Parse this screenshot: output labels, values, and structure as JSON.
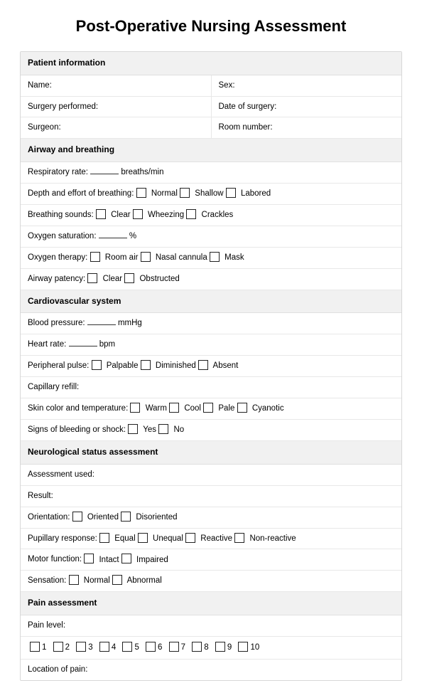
{
  "title": "Post-Operative Nursing Assessment",
  "colors": {
    "page_bg": "#ffffff",
    "border": "#d8d8d8",
    "row_border": "#e8e8e8",
    "header_bg": "#f1f1f1",
    "text": "#000000",
    "checkbox_border": "#222222"
  },
  "patient_info": {
    "header": "Patient information",
    "name_label": "Name:",
    "sex_label": "Sex:",
    "surgery_label": "Surgery performed:",
    "date_label": "Date of surgery:",
    "surgeon_label": "Surgeon:",
    "room_label": "Room number:"
  },
  "airway": {
    "header": "Airway and breathing",
    "resp_rate_pre": "Respiratory rate: ",
    "resp_rate_post": " breaths/min",
    "depth_label": "Depth and effort of breathing:",
    "depth_opts": [
      "Normal",
      "Shallow",
      "Labored"
    ],
    "sounds_label": "Breathing sounds:",
    "sounds_opts": [
      "Clear",
      "Wheezing",
      "Crackles"
    ],
    "sat_pre": "Oxygen saturation: ",
    "sat_post": " %",
    "therapy_label": "Oxygen therapy:",
    "therapy_opts": [
      "Room air",
      "Nasal cannula",
      "Mask"
    ],
    "patency_label": "Airway patency:",
    "patency_opts": [
      "Clear",
      "Obstructed"
    ]
  },
  "cardio": {
    "header": "Cardiovascular system",
    "bp_pre": "Blood pressure: ",
    "bp_post": " mmHg",
    "hr_pre": "Heart rate: ",
    "hr_post": " bpm",
    "pulse_label": "Peripheral pulse:",
    "pulse_opts": [
      "Palpable",
      "Diminished",
      "Absent"
    ],
    "caprefill_label": "Capillary refill:",
    "skin_label": "Skin color and temperature:",
    "skin_opts": [
      "Warm",
      "Cool",
      "Pale",
      "Cyanotic"
    ],
    "bleed_label": "Signs of bleeding or shock:",
    "bleed_opts": [
      "Yes",
      "No"
    ]
  },
  "neuro": {
    "header": "Neurological status assessment",
    "assessment_label": "Assessment used:",
    "result_label": "Result:",
    "orient_label": "Orientation:",
    "orient_opts": [
      "Oriented",
      "Disoriented"
    ],
    "pupil_label": "Pupillary response:",
    "pupil_opts": [
      "Equal",
      "Unequal",
      "Reactive",
      "Non-reactive"
    ],
    "motor_label": "Motor function:",
    "motor_opts": [
      "Intact",
      "Impaired"
    ],
    "sens_label": "Sensation:",
    "sens_opts": [
      "Normal",
      "Abnormal"
    ]
  },
  "pain": {
    "header": "Pain assessment",
    "level_label": "Pain level:",
    "scale": [
      "1",
      "2",
      "3",
      "4",
      "5",
      "6",
      "7",
      "8",
      "9",
      "10"
    ],
    "location_label": "Location of pain:"
  }
}
